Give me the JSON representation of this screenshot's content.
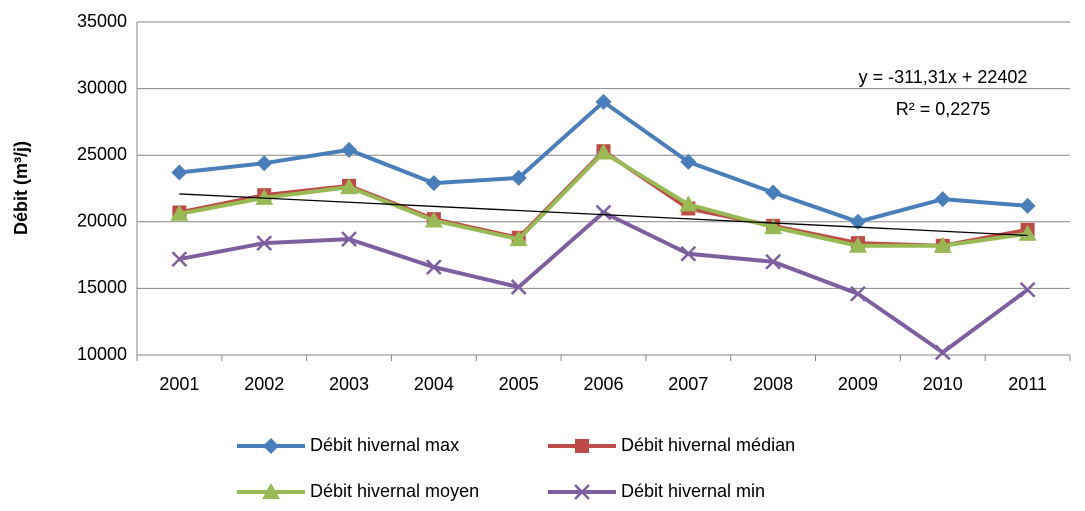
{
  "chart_data": {
    "type": "line",
    "y_label": "Débit (m³/j)",
    "categories": [
      "2001",
      "2002",
      "2003",
      "2004",
      "2005",
      "2006",
      "2007",
      "2008",
      "2009",
      "2010",
      "2011"
    ],
    "series": [
      {
        "name": "Débit hivernal max",
        "color": "#4a7ebb",
        "marker": "diamond",
        "values": [
          23700,
          24400,
          25400,
          22900,
          23300,
          29000,
          24500,
          22200,
          20000,
          21700,
          21200
        ]
      },
      {
        "name": "Débit hivernal médian",
        "color": "#be4b48",
        "marker": "square",
        "values": [
          20700,
          22000,
          22700,
          20200,
          18800,
          25300,
          21000,
          19700,
          18400,
          18200,
          19400
        ]
      },
      {
        "name": "Débit hivernal moyen",
        "color": "#98b954",
        "marker": "triangle",
        "values": [
          20600,
          21800,
          22600,
          20100,
          18700,
          25200,
          21300,
          19600,
          18200,
          18200,
          19100
        ]
      },
      {
        "name": "Débit hivernal min",
        "color": "#7d5fa0",
        "marker": "x",
        "values": [
          17200,
          18400,
          18700,
          16600,
          15100,
          20700,
          17600,
          17000,
          14600,
          10200,
          14900
        ]
      }
    ],
    "trendline": {
      "slope": -311.31,
      "intercept": 22402,
      "color": "#000000"
    },
    "annotations": [
      "y = -311,31x + 22402",
      "R² = 0,2275"
    ],
    "ylim": [
      10000,
      35000
    ],
    "yticks": [
      10000,
      15000,
      20000,
      25000,
      30000,
      35000
    ],
    "grid": true
  }
}
